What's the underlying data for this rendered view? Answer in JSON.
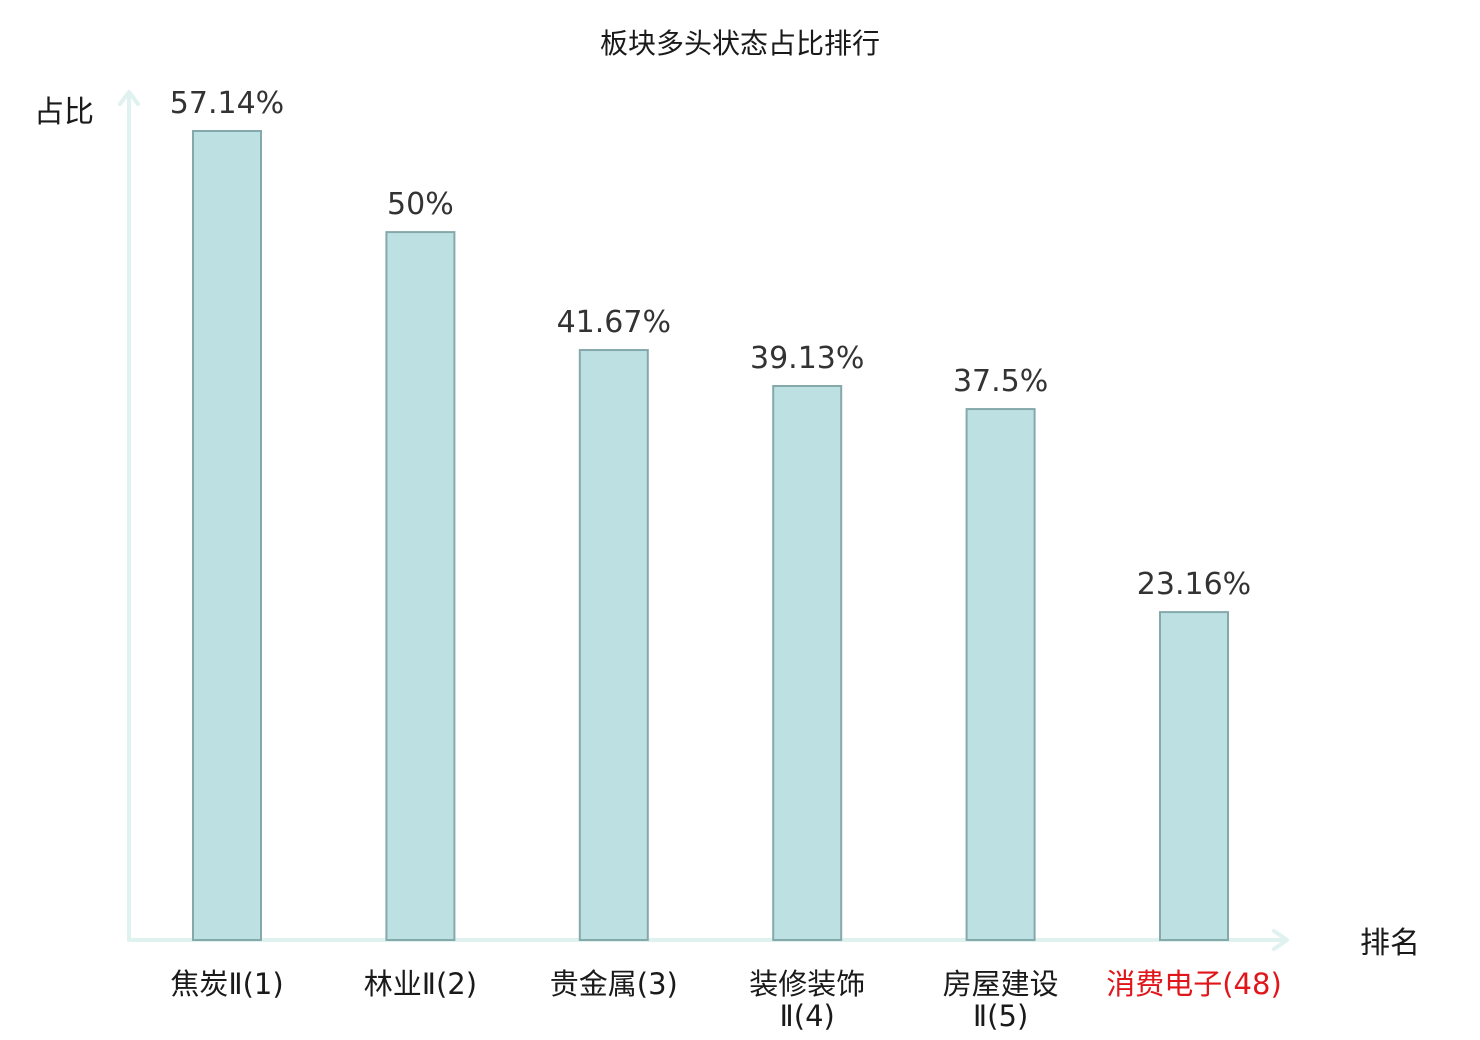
{
  "chart_data": {
    "type": "bar",
    "title": "板块多头状态占比排行",
    "ylabel": "占比",
    "xlabel": "排名",
    "ylim": [
      0,
      60
    ],
    "grid": false,
    "legend": "none",
    "categories": [
      [
        "焦炭Ⅱ(1)"
      ],
      [
        "林业Ⅱ(2)"
      ],
      [
        "贵金属(3)"
      ],
      [
        "装修装饰",
        "Ⅱ(4)"
      ],
      [
        "房屋建设",
        "Ⅱ(5)"
      ],
      [
        "消费电子(48)"
      ]
    ],
    "values": [
      57.14,
      50,
      41.67,
      39.13,
      37.5,
      23.16
    ],
    "value_labels": [
      "57.14%",
      "50%",
      "41.67%",
      "39.13%",
      "37.5%",
      "23.16%"
    ],
    "highlight_index": 5,
    "colors": {
      "bar_fill": "#bde0e3",
      "bar_stroke": "#85a9ab",
      "axis": "#dff2ef",
      "label": "#1a1a1a",
      "highlight_label": "#e0161b",
      "value_label": "#333333"
    }
  }
}
